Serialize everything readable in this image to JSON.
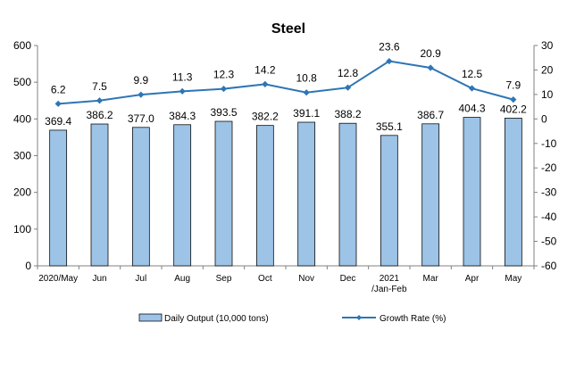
{
  "chart_data": {
    "type": "bar",
    "title": "Steel",
    "categories": [
      "2020/May",
      "Jun",
      "Jul",
      "Aug",
      "Sep",
      "Oct",
      "Nov",
      "Dec",
      "2021\n/Jan-Feb",
      "Mar",
      "Apr",
      "May"
    ],
    "series": [
      {
        "name": "Daily Output (10,000 tons)",
        "type": "bar",
        "axis": "left",
        "values": [
          369.4,
          386.2,
          377.0,
          384.3,
          393.5,
          382.2,
          391.1,
          388.2,
          355.1,
          386.7,
          404.3,
          402.2
        ],
        "labels": [
          "369.4",
          "386.2",
          "377.0",
          "384.3",
          "393.5",
          "382.2",
          "391.1",
          "388.2",
          "355.1",
          "386.7",
          "404.3",
          "402.2"
        ],
        "color": "#9dc3e6"
      },
      {
        "name": "Growth Rate (%)",
        "type": "line",
        "axis": "right",
        "values": [
          6.2,
          7.5,
          9.9,
          11.3,
          12.3,
          14.2,
          10.8,
          12.8,
          23.6,
          20.9,
          12.5,
          7.9
        ],
        "labels": [
          "6.2",
          "7.5",
          "9.9",
          "11.3",
          "12.3",
          "14.2",
          "10.8",
          "12.8",
          "23.6",
          "20.9",
          "12.5",
          "7.9"
        ],
        "color": "#2e75b6"
      }
    ],
    "y_left": {
      "min": 0,
      "max": 600,
      "step": 100,
      "ticks": [
        "0",
        "100",
        "200",
        "300",
        "400",
        "500",
        "600"
      ]
    },
    "y_right": {
      "min": -60,
      "max": 30,
      "step": 10,
      "ticks": [
        "-60",
        "-50",
        "-40",
        "-30",
        "-20",
        "-10",
        "0",
        "10",
        "20",
        "30"
      ]
    },
    "grid": false,
    "legend_position": "bottom"
  }
}
